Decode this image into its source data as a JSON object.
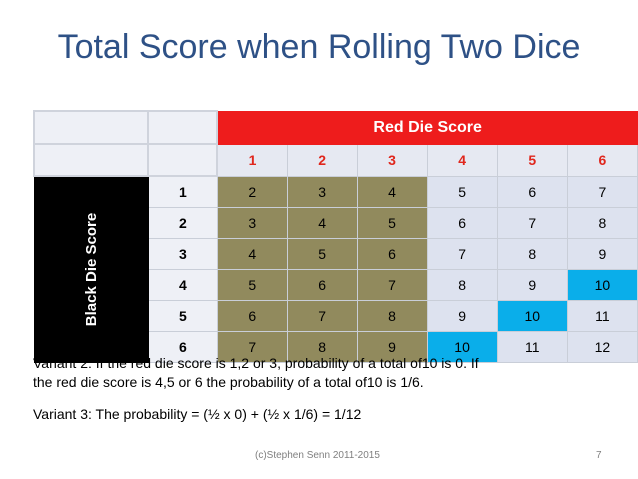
{
  "title": "Total Score when Rolling Two Dice",
  "table": {
    "header": "Red Die Score",
    "side_label": "Black Die Score",
    "col_heads": [
      "1",
      "2",
      "3",
      "4",
      "5",
      "6"
    ],
    "rows": [
      {
        "head": "1",
        "cells": [
          "2",
          "3",
          "4",
          "5",
          "6",
          "7"
        ]
      },
      {
        "head": "2",
        "cells": [
          "3",
          "4",
          "5",
          "6",
          "7",
          "8"
        ]
      },
      {
        "head": "3",
        "cells": [
          "4",
          "5",
          "6",
          "7",
          "8",
          "9"
        ]
      },
      {
        "head": "4",
        "cells": [
          "5",
          "6",
          "7",
          "8",
          "9",
          "10"
        ]
      },
      {
        "head": "5",
        "cells": [
          "6",
          "7",
          "8",
          "9",
          "10",
          "11"
        ]
      },
      {
        "head": "6",
        "cells": [
          "7",
          "8",
          "9",
          "10",
          "11",
          "12"
        ]
      }
    ]
  },
  "notes": {
    "variant2_line1": "Variant 2: If the red die score is 1,2 or 3, probability of a total of10 is 0. If",
    "variant2_line2": "the red die score is 4,5 or 6 the probability of a total of10 is 1/6.",
    "variant3": "Variant 3: The probability = (½ x 0) + (½ x 1/6) = 1/12"
  },
  "footer": "(c)Stephen Senn 2011-2015",
  "page_number": "7",
  "colors": {
    "title": "#2e5186",
    "red_header": "#ee1c1c",
    "olive": "#918a5d",
    "lavender": "#dde2ef",
    "cyan_highlight": "#0aaeea",
    "black_label": "#000000"
  }
}
